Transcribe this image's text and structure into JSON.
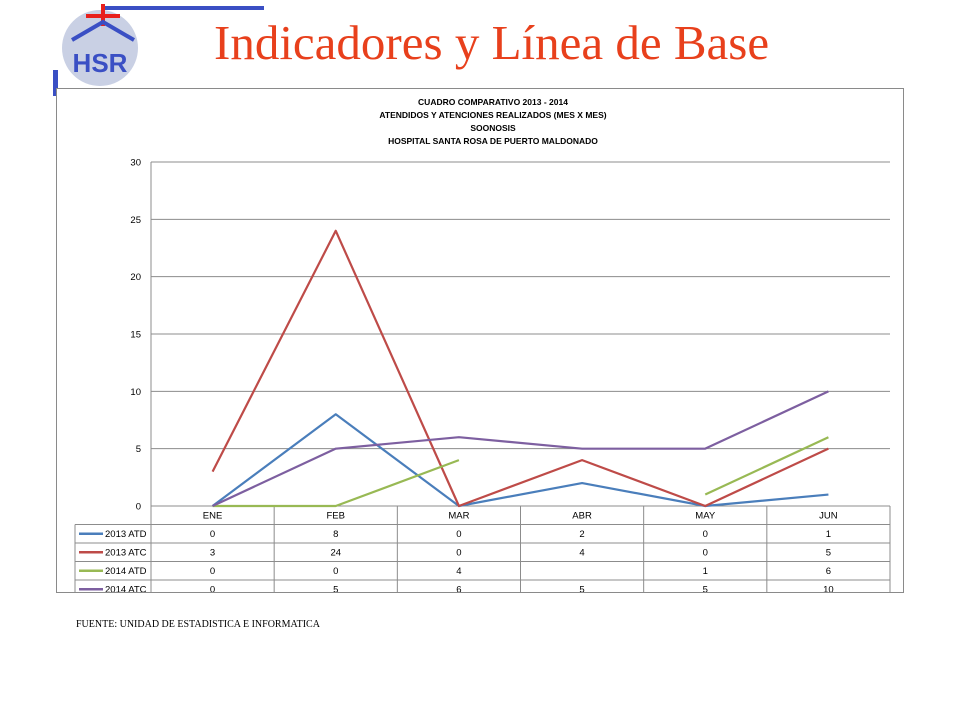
{
  "slide": {
    "title": "Indicadores y Línea de Base",
    "source_note": "FUENTE: UNIDAD DE ESTADISTICA E INFORMATICA",
    "logo_text": "HSR",
    "colors": {
      "title": "#e8401c",
      "logo_blue": "#3a4fc4",
      "logo_red": "#e8201c",
      "logo_circle": "#c9d0e4"
    }
  },
  "chart_data": {
    "type": "line",
    "title_lines": [
      "CUADRO COMPARATIVO 2013 - 2014",
      "ATENDIDOS Y ATENCIONES REALIZADOS (MES X MES)",
      "SOONOSIS",
      "HOSPITAL SANTA ROSA DE PUERTO MALDONADO"
    ],
    "categories": [
      "ENE",
      "FEB",
      "MAR",
      "ABR",
      "MAY",
      "JUN"
    ],
    "ylim": [
      0,
      30
    ],
    "yticks": [
      0,
      5,
      10,
      15,
      20,
      25,
      30
    ],
    "grid": true,
    "legend": "data-table",
    "series": [
      {
        "name": "2013 ATD",
        "color": "#4a7ebb",
        "values": [
          0,
          8,
          0,
          2,
          0,
          1
        ]
      },
      {
        "name": "2013 ATC",
        "color": "#be4b48",
        "values": [
          3,
          24,
          0,
          4,
          0,
          5
        ]
      },
      {
        "name": "2014 ATD",
        "color": "#98b954",
        "values": [
          0,
          0,
          4,
          null,
          1,
          6
        ]
      },
      {
        "name": "2014 ATC",
        "color": "#7d5fa0",
        "values": [
          0,
          5,
          6,
          5,
          5,
          10
        ]
      }
    ]
  }
}
